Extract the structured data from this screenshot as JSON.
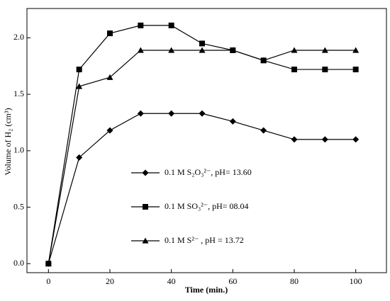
{
  "chart_data": {
    "type": "line",
    "xlabel": "Time (min.)",
    "ylabel": "Volume of H₂ (cm³)",
    "x": [
      0,
      10,
      20,
      30,
      40,
      50,
      60,
      70,
      80,
      90,
      100
    ],
    "series": [
      {
        "name": "0.1 M S₂O₃²⁻,  pH= 13.60",
        "color": "#000000",
        "marker": "diamond",
        "values": [
          0,
          0.94,
          1.18,
          1.33,
          1.33,
          1.33,
          1.26,
          1.18,
          1.1,
          1.1,
          1.1
        ]
      },
      {
        "name": "0.1 M SO₃²⁻,  pH= 08.04",
        "color": "#000000",
        "marker": "square",
        "values": [
          0,
          1.72,
          2.04,
          2.11,
          2.11,
          1.95,
          1.89,
          1.8,
          1.72,
          1.72,
          1.72
        ]
      },
      {
        "name": "0.1 M S²⁻ , pH = 13.72",
        "color": "#000000",
        "marker": "triangle",
        "values": [
          0,
          1.57,
          1.65,
          1.89,
          1.89,
          1.89,
          1.89,
          1.8,
          1.89,
          1.89,
          1.89
        ]
      }
    ],
    "xlim": [
      -7,
      110
    ],
    "xticks": [
      0,
      20,
      40,
      60,
      80,
      100
    ],
    "ylim": [
      -0.08,
      2.26
    ],
    "yticks": [
      {
        "value": 0,
        "label": "0.0"
      },
      0.5,
      {
        "value": 1,
        "label": "1.0"
      },
      1.5,
      {
        "value": 2,
        "label": "2.0"
      }
    ],
    "grid": false,
    "legend": "center"
  }
}
